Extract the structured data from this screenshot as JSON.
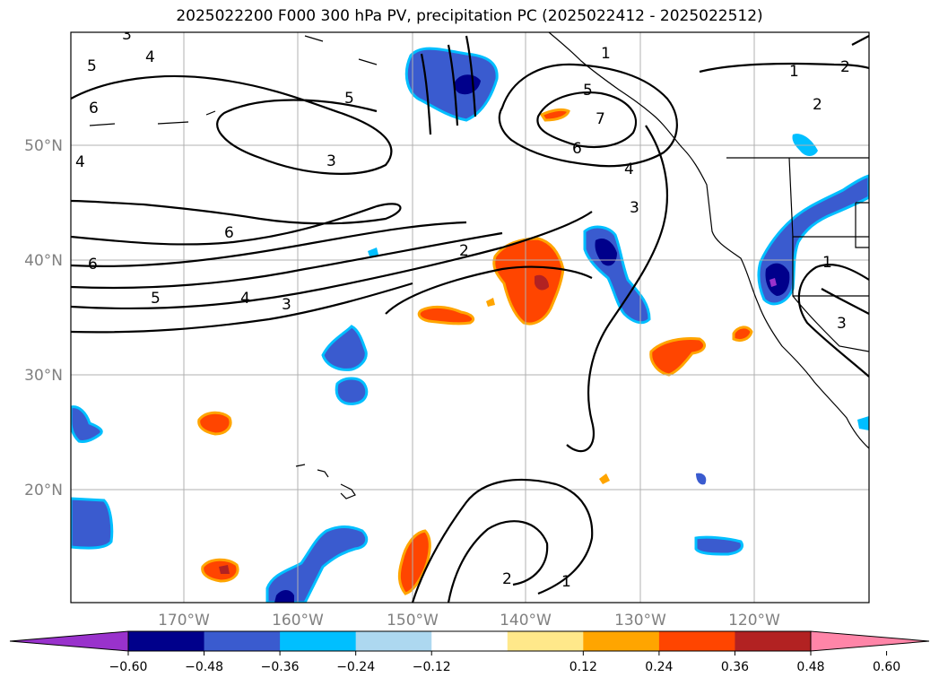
{
  "title": "2025022200 F000 300 hPa PV, precipitation PC (2025022412 - 2025022512)",
  "map": {
    "lat_labels": [
      "50°N",
      "40°N",
      "30°N",
      "20°N"
    ],
    "lon_labels": [
      "170°W",
      "160°W",
      "150°W",
      "140°W",
      "130°W",
      "120°W"
    ],
    "contour_labels": [
      "3",
      "4",
      "5",
      "6",
      "4",
      "3",
      "5",
      "6",
      "1",
      "2",
      "5",
      "7",
      "6",
      "4",
      "3",
      "6",
      "2",
      "5",
      "4",
      "3",
      "1",
      "3",
      "1",
      "2",
      "1",
      "2"
    ],
    "pv_contour_levels": [
      1,
      2,
      3,
      4,
      5,
      6,
      7
    ]
  },
  "colorbar": {
    "tick_labels": [
      "−0.60",
      "−0.48",
      "−0.36",
      "−0.24",
      "−0.12",
      "0.12",
      "0.24",
      "0.36",
      "0.48",
      "0.60"
    ],
    "bins": [
      {
        "from": null,
        "to": -0.6,
        "color": "#9932cc"
      },
      {
        "from": -0.6,
        "to": -0.48,
        "color": "#00008b"
      },
      {
        "from": -0.48,
        "to": -0.36,
        "color": "#3a5bcf"
      },
      {
        "from": -0.36,
        "to": -0.24,
        "color": "#00bfff"
      },
      {
        "from": -0.24,
        "to": -0.12,
        "color": "#add8f0"
      },
      {
        "from": -0.12,
        "to": 0.12,
        "color": "#ffffff"
      },
      {
        "from": 0.12,
        "to": 0.24,
        "color": "#ffe88a"
      },
      {
        "from": 0.24,
        "to": 0.36,
        "color": "#ffa500"
      },
      {
        "from": 0.36,
        "to": 0.48,
        "color": "#ff4500"
      },
      {
        "from": 0.48,
        "to": 0.6,
        "color": "#b22222"
      },
      {
        "from": 0.6,
        "to": null,
        "color": "#ff85a8"
      }
    ]
  }
}
